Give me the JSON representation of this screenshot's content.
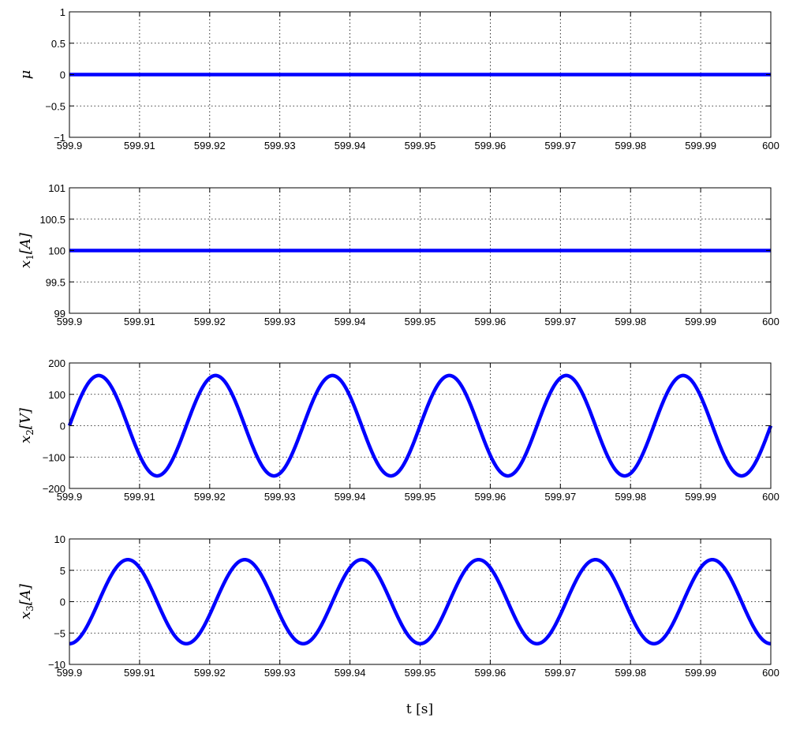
{
  "figure": {
    "xlabel": "t [s]"
  },
  "chart_data": [
    {
      "type": "line",
      "ylabel": "μ",
      "xlim": [
        599.9,
        600
      ],
      "ylim": [
        -1,
        1
      ],
      "x_ticks": [
        "599.9",
        "599.91",
        "599.92",
        "599.93",
        "599.94",
        "599.95",
        "599.96",
        "599.97",
        "599.98",
        "599.99",
        "600"
      ],
      "y_ticks": [
        "1",
        "0.5",
        "0",
        "−0.5",
        "−1"
      ],
      "grid": true,
      "series": [
        {
          "x": [
            599.9,
            600
          ],
          "y": [
            0,
            0
          ],
          "color": "#0000ff"
        }
      ]
    },
    {
      "type": "line",
      "ylabel_main": "x",
      "ylabel_sub": "1",
      "ylabel_unit": "[A]",
      "xlim": [
        599.9,
        600
      ],
      "ylim": [
        99,
        101
      ],
      "x_ticks": [
        "599.9",
        "599.91",
        "599.92",
        "599.93",
        "599.94",
        "599.95",
        "599.96",
        "599.97",
        "599.98",
        "599.99",
        "600"
      ],
      "y_ticks": [
        "101",
        "100.5",
        "100",
        "99.5",
        "99"
      ],
      "grid": true,
      "series": [
        {
          "x": [
            599.9,
            600
          ],
          "y": [
            100,
            100
          ],
          "color": "#0000ff"
        }
      ]
    },
    {
      "type": "line",
      "ylabel_main": "x",
      "ylabel_sub": "2",
      "ylabel_unit": "[V]",
      "xlim": [
        599.9,
        600
      ],
      "ylim": [
        -200,
        200
      ],
      "x_ticks": [
        "599.9",
        "599.91",
        "599.92",
        "599.93",
        "599.94",
        "599.95",
        "599.96",
        "599.97",
        "599.98",
        "599.99",
        "600"
      ],
      "y_ticks": [
        "200",
        "100",
        "0",
        "−100",
        "−200"
      ],
      "grid": true,
      "series": [
        {
          "waveform": "sine",
          "amplitude": 160,
          "frequency_hz": 60,
          "phase_deg": 0,
          "color": "#0000ff"
        }
      ]
    },
    {
      "type": "line",
      "ylabel_main": "x",
      "ylabel_sub": "3",
      "ylabel_unit": "[A]",
      "xlim": [
        599.9,
        600
      ],
      "ylim": [
        -10,
        10
      ],
      "x_ticks": [
        "599.9",
        "599.91",
        "599.92",
        "599.93",
        "599.94",
        "599.95",
        "599.96",
        "599.97",
        "599.98",
        "599.99",
        "600"
      ],
      "y_ticks": [
        "10",
        "5",
        "0",
        "−5",
        "−10"
      ],
      "grid": true,
      "series": [
        {
          "waveform": "sine",
          "amplitude": 6.7,
          "frequency_hz": 60,
          "phase_deg": -90,
          "color": "#0000ff"
        }
      ]
    }
  ]
}
